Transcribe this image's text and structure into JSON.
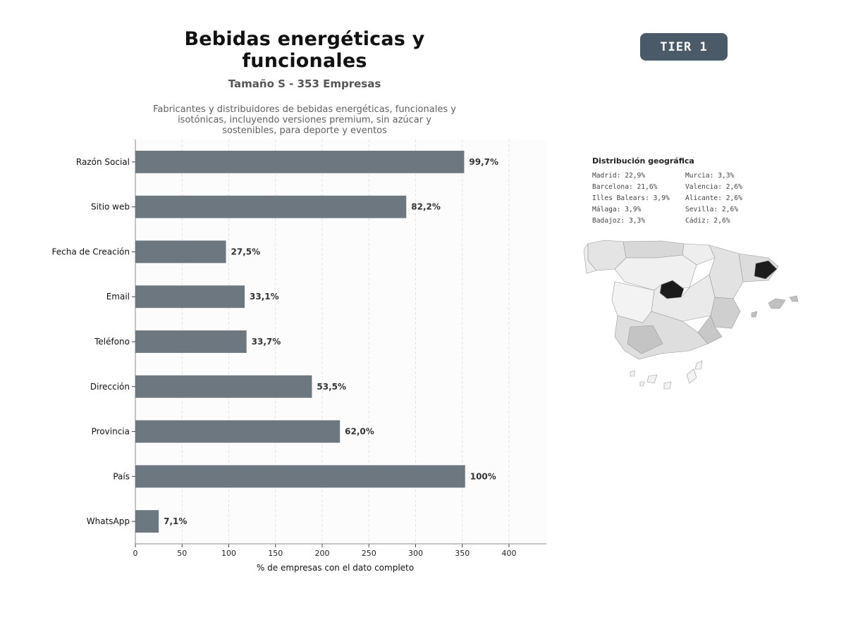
{
  "header": {
    "title": "Bebidas energéticas y funcionales",
    "subtitle": "Tamaño S - 353 Empresas",
    "description": "Fabricantes y distribuidores de bebidas energéticas, funcionales y isotónicas, incluyendo versiones premium, sin azúcar y sostenibles, para deporte y eventos"
  },
  "badge": {
    "label": "TIER 1"
  },
  "chart_data": {
    "type": "bar",
    "orientation": "horizontal",
    "categories": [
      "Razón Social",
      "Sitio web",
      "Fecha de Creación",
      "Email",
      "Teléfono",
      "Dirección",
      "Provincia",
      "País",
      "WhatsApp"
    ],
    "values": [
      352,
      290,
      97,
      117,
      119,
      189,
      219,
      353,
      25
    ],
    "value_labels": [
      "99,7%",
      "82,2%",
      "27,5%",
      "33,1%",
      "33,7%",
      "53,5%",
      "62,0%",
      "100%",
      "7,1%"
    ],
    "xlabel": "% de empresas con el dato completo",
    "xticks": [
      0,
      50,
      100,
      150,
      200,
      250,
      300,
      350,
      400
    ],
    "xlim": [
      0,
      440
    ],
    "grid": true,
    "bar_color": "#6c7780"
  },
  "geo": {
    "title": "Distribución geográfica",
    "items": [
      "Madrid: 22,9%",
      "Murcia: 3,3%",
      "Barcelona: 21,6%",
      "Valencia: 2,6%",
      "Illes Balears: 3,9%",
      "Alicante: 2,6%",
      "Málaga: 3,9%",
      "Sevilla: 2,6%",
      "Badajoz: 3,3%",
      "Cádiz: 2,6%"
    ]
  }
}
